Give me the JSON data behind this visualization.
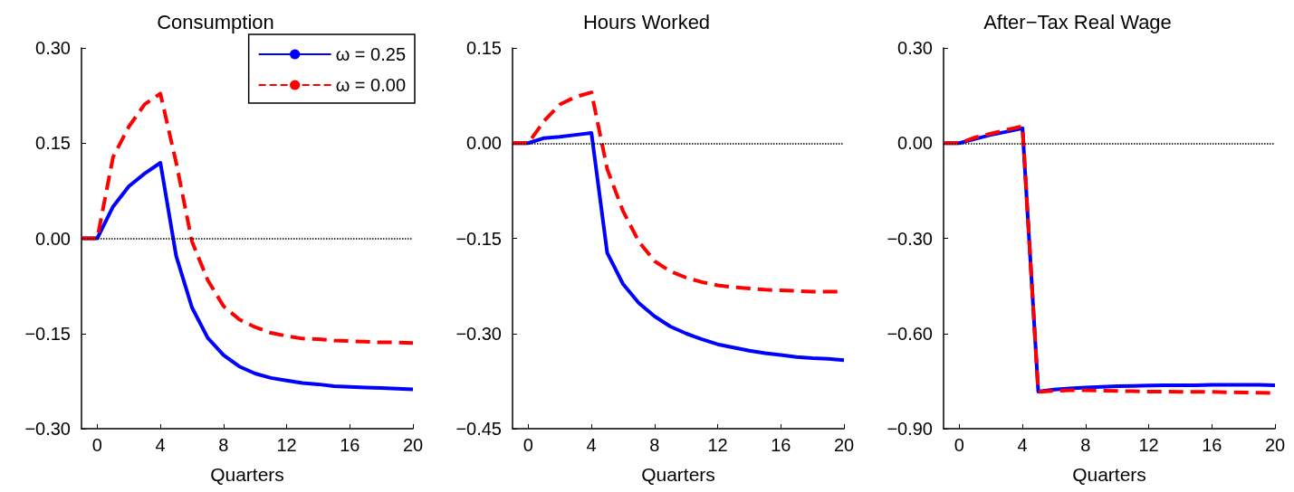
{
  "chart_data": [
    {
      "type": "line",
      "title": "Consumption",
      "xlabel": "Quarters",
      "x": [
        -1,
        0,
        1,
        2,
        3,
        4,
        5,
        6,
        7,
        8,
        9,
        10,
        11,
        12,
        13,
        14,
        15,
        16,
        17,
        18,
        19,
        20
      ],
      "xlim": [
        -1,
        20
      ],
      "xticks": [
        0,
        4,
        8,
        12,
        16,
        20
      ],
      "ylim": [
        -0.3,
        0.3
      ],
      "yticks": [
        {
          "value": -0.3,
          "label": "−0.30"
        },
        {
          "value": -0.15,
          "label": "−0.15"
        },
        {
          "value": 0,
          "label": "0.00"
        },
        {
          "value": 0.15,
          "label": "0.15"
        },
        {
          "value": 0.3,
          "label": "0.30"
        }
      ],
      "grid": false,
      "marker": "none",
      "legend": "top right",
      "ref_lines": [
        {
          "axis": "y",
          "value": 0,
          "line_style": "dotted",
          "color": "#000000"
        }
      ],
      "series": [
        {
          "name": "ω = 0.25",
          "color": "#0000ff",
          "line_style": "solid",
          "values": [
            0,
            0,
            0.05,
            0.082,
            0.102,
            0.119,
            -0.028,
            -0.109,
            -0.157,
            -0.184,
            -0.202,
            -0.213,
            -0.22,
            -0.224,
            -0.228,
            -0.23,
            -0.233,
            -0.234,
            -0.235,
            -0.236,
            -0.237,
            -0.238
          ]
        },
        {
          "name": "ω = 0.00",
          "color": "#ff0000",
          "line_style": "dashed",
          "values": [
            0,
            0,
            0.128,
            0.176,
            0.211,
            0.228,
            0.119,
            -0.005,
            -0.066,
            -0.107,
            -0.128,
            -0.14,
            -0.149,
            -0.154,
            -0.158,
            -0.159,
            -0.161,
            -0.162,
            -0.163,
            -0.164,
            -0.164,
            -0.165
          ]
        }
      ]
    },
    {
      "type": "line",
      "title": "Hours Worked",
      "xlabel": "Quarters",
      "x": [
        -1,
        0,
        1,
        2,
        3,
        4,
        5,
        6,
        7,
        8,
        9,
        10,
        11,
        12,
        13,
        14,
        15,
        16,
        17,
        18,
        19,
        20
      ],
      "xlim": [
        -1,
        20
      ],
      "xticks": [
        0,
        4,
        8,
        12,
        16,
        20
      ],
      "ylim": [
        -0.45,
        0.15
      ],
      "yticks": [
        {
          "value": -0.45,
          "label": "−0.45"
        },
        {
          "value": -0.3,
          "label": "−0.30"
        },
        {
          "value": -0.15,
          "label": "−0.15"
        },
        {
          "value": 0,
          "label": "0.00"
        },
        {
          "value": 0.15,
          "label": "0.15"
        }
      ],
      "grid": false,
      "marker": "none",
      "legend": false,
      "ref_lines": [
        {
          "axis": "y",
          "value": 0,
          "line_style": "dotted",
          "color": "#000000"
        }
      ],
      "series": [
        {
          "color": "#0000ff",
          "line_style": "solid",
          "values": [
            0,
            0,
            0.008,
            0.01,
            0.013,
            0.016,
            -0.173,
            -0.222,
            -0.252,
            -0.273,
            -0.289,
            -0.3,
            -0.309,
            -0.317,
            -0.322,
            -0.327,
            -0.331,
            -0.334,
            -0.337,
            -0.339,
            -0.34,
            -0.342
          ]
        },
        {
          "color": "#ff0000",
          "line_style": "dashed",
          "values": [
            0,
            0,
            0.035,
            0.061,
            0.073,
            0.08,
            -0.041,
            -0.107,
            -0.155,
            -0.186,
            -0.202,
            -0.212,
            -0.219,
            -0.224,
            -0.227,
            -0.229,
            -0.231,
            -0.232,
            -0.233,
            -0.234,
            -0.234,
            -0.234
          ]
        }
      ]
    },
    {
      "type": "line",
      "title": "After−Tax Real Wage",
      "xlabel": "Quarters",
      "x": [
        -1,
        0,
        1,
        2,
        3,
        4,
        5,
        6,
        7,
        8,
        9,
        10,
        11,
        12,
        13,
        14,
        15,
        16,
        17,
        18,
        19,
        20
      ],
      "xlim": [
        -1,
        20
      ],
      "xticks": [
        0,
        4,
        8,
        12,
        16,
        20
      ],
      "ylim": [
        -0.9,
        0.3
      ],
      "yticks": [
        {
          "value": -0.9,
          "label": "−0.90"
        },
        {
          "value": -0.6,
          "label": "−0.60"
        },
        {
          "value": -0.3,
          "label": "−0.30"
        },
        {
          "value": 0,
          "label": "0.00"
        },
        {
          "value": 0.3,
          "label": "0.30"
        }
      ],
      "grid": false,
      "marker": "none",
      "legend": false,
      "ref_lines": [
        {
          "axis": "y",
          "value": 0,
          "line_style": "dotted",
          "color": "#000000"
        }
      ],
      "series": [
        {
          "color": "#0000ff",
          "line_style": "solid",
          "values": [
            0,
            0,
            0.013,
            0.026,
            0.036,
            0.047,
            -0.783,
            -0.777,
            -0.773,
            -0.77,
            -0.768,
            -0.766,
            -0.765,
            -0.764,
            -0.763,
            -0.763,
            -0.763,
            -0.762,
            -0.762,
            -0.762,
            -0.762,
            -0.763
          ]
        },
        {
          "color": "#ff0000",
          "line_style": "dashed",
          "values": [
            0,
            0,
            0.018,
            0.03,
            0.042,
            0.053,
            -0.784,
            -0.781,
            -0.779,
            -0.779,
            -0.78,
            -0.781,
            -0.782,
            -0.783,
            -0.783,
            -0.784,
            -0.784,
            -0.784,
            -0.785,
            -0.786,
            -0.787,
            -0.788
          ]
        }
      ]
    }
  ]
}
